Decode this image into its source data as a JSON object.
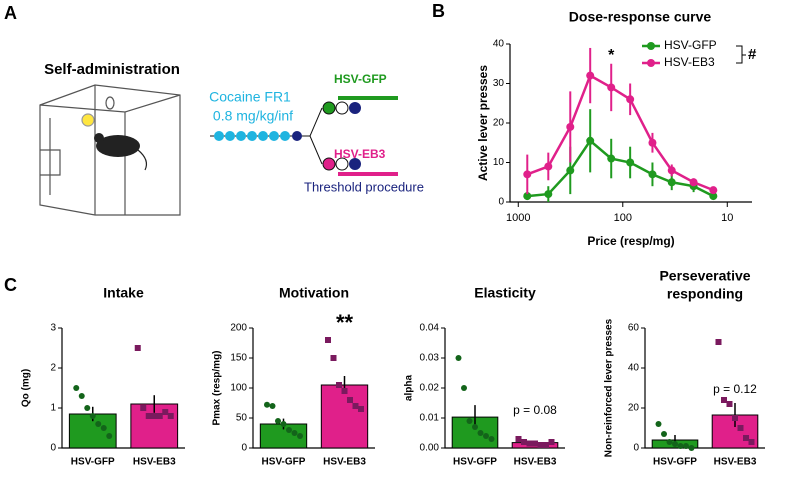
{
  "panel_labels": [
    "A",
    "B",
    "C"
  ],
  "diagram": {
    "title": "Self-administration",
    "schedule": "Cocaine FR1",
    "dose": "0.8 mg/kg/inf",
    "groups": [
      "HSV-GFP",
      "HSV-EB3"
    ],
    "procedure": "Threshold procedure"
  },
  "chart_data": [
    {
      "type": "line",
      "title": "Dose-response curve",
      "x_label": "Price (resp/mg)",
      "y_label": "Active lever presses",
      "x": [
        820,
        516,
        318,
        205,
        129,
        85,
        52,
        34,
        21,
        13.6
      ],
      "log_x": true,
      "xlim": [
        1200,
        5.8
      ],
      "xticks": [
        1000,
        100,
        10
      ],
      "ylim": [
        0,
        40
      ],
      "yticks": [
        0,
        10,
        20,
        30,
        40
      ],
      "series": [
        {
          "name": "HSV-GFP",
          "color": "#1f9a1f",
          "values": [
            1.5,
            2,
            8,
            15.5,
            11,
            10,
            7,
            5,
            4,
            1.5
          ],
          "errors": [
            1,
            2,
            6,
            8,
            5,
            4,
            3,
            2,
            1.5,
            0.5
          ]
        },
        {
          "name": "HSV-EB3",
          "color": "#e0208a",
          "values": [
            7,
            9,
            19,
            32,
            29,
            26,
            15,
            8,
            5,
            3
          ],
          "errors": [
            5,
            3.5,
            9,
            7,
            6,
            4,
            2.5,
            1.5,
            1,
            0.5
          ]
        }
      ],
      "annotations": [
        "*",
        "#"
      ]
    },
    {
      "type": "bar",
      "title": "Intake",
      "y_label": "Qo (mg)",
      "categories": [
        "HSV-GFP",
        "HSV-EB3"
      ],
      "colors": [
        "#1f9a1f",
        "#e0208a"
      ],
      "values": [
        0.85,
        1.1
      ],
      "errors": [
        0.18,
        0.22
      ],
      "points": [
        [
          1.5,
          1.3,
          1.0,
          0.8,
          0.6,
          0.5,
          0.3
        ],
        [
          2.5,
          1.0,
          0.8,
          0.8,
          0.8,
          0.9,
          0.8
        ]
      ],
      "ylim": [
        0,
        3
      ],
      "yticks": [
        0,
        1,
        2,
        3
      ]
    },
    {
      "type": "bar",
      "title": "Motivation",
      "y_label": "Pmax (resp/mg)",
      "categories": [
        "HSV-GFP",
        "HSV-EB3"
      ],
      "colors": [
        "#1f9a1f",
        "#e0208a"
      ],
      "values": [
        40,
        105
      ],
      "errors": [
        9,
        15
      ],
      "points": [
        [
          72,
          70,
          45,
          40,
          30,
          25,
          20
        ],
        [
          180,
          150,
          105,
          95,
          80,
          70,
          65
        ]
      ],
      "ylim": [
        0,
        200
      ],
      "yticks": [
        0,
        50,
        100,
        150,
        200
      ],
      "annotation": "**"
    },
    {
      "type": "bar",
      "title": "Elasticity",
      "y_label": "alpha",
      "categories": [
        "HSV-GFP",
        "HSV-EB3"
      ],
      "colors": [
        "#1f9a1f",
        "#e0208a"
      ],
      "values": [
        0.0103,
        0.0018
      ],
      "errors": [
        0.004,
        0.0003
      ],
      "points": [
        [
          0.03,
          0.02,
          0.009,
          0.007,
          0.005,
          0.004,
          0.003
        ],
        [
          0.003,
          0.002,
          0.0015,
          0.0015,
          0.001,
          0.001,
          0.002
        ]
      ],
      "ylim": [
        0,
        0.04
      ],
      "yticks": [
        {
          "value": 0,
          "label": "0.00"
        },
        {
          "value": 0.01,
          "label": "0.01"
        },
        {
          "value": 0.02,
          "label": "0.02"
        },
        {
          "value": 0.03,
          "label": "0.03"
        },
        {
          "value": 0.04,
          "label": "0.04"
        }
      ],
      "annotation": "p = 0.08"
    },
    {
      "type": "bar",
      "title": [
        "Perseverative",
        "responding"
      ],
      "y_label": "Non-reinforced lever presses",
      "categories": [
        "HSV-GFP",
        "HSV-EB3"
      ],
      "colors": [
        "#1f9a1f",
        "#e0208a"
      ],
      "values": [
        4,
        16.5
      ],
      "errors": [
        2.5,
        6
      ],
      "points": [
        [
          12,
          7,
          3,
          2,
          1,
          1,
          0
        ],
        [
          53,
          24,
          22,
          15,
          10,
          5,
          3
        ]
      ],
      "ylim": [
        0,
        60
      ],
      "yticks": [
        0,
        20,
        40,
        60
      ],
      "annotation": "p = 0.12"
    }
  ]
}
